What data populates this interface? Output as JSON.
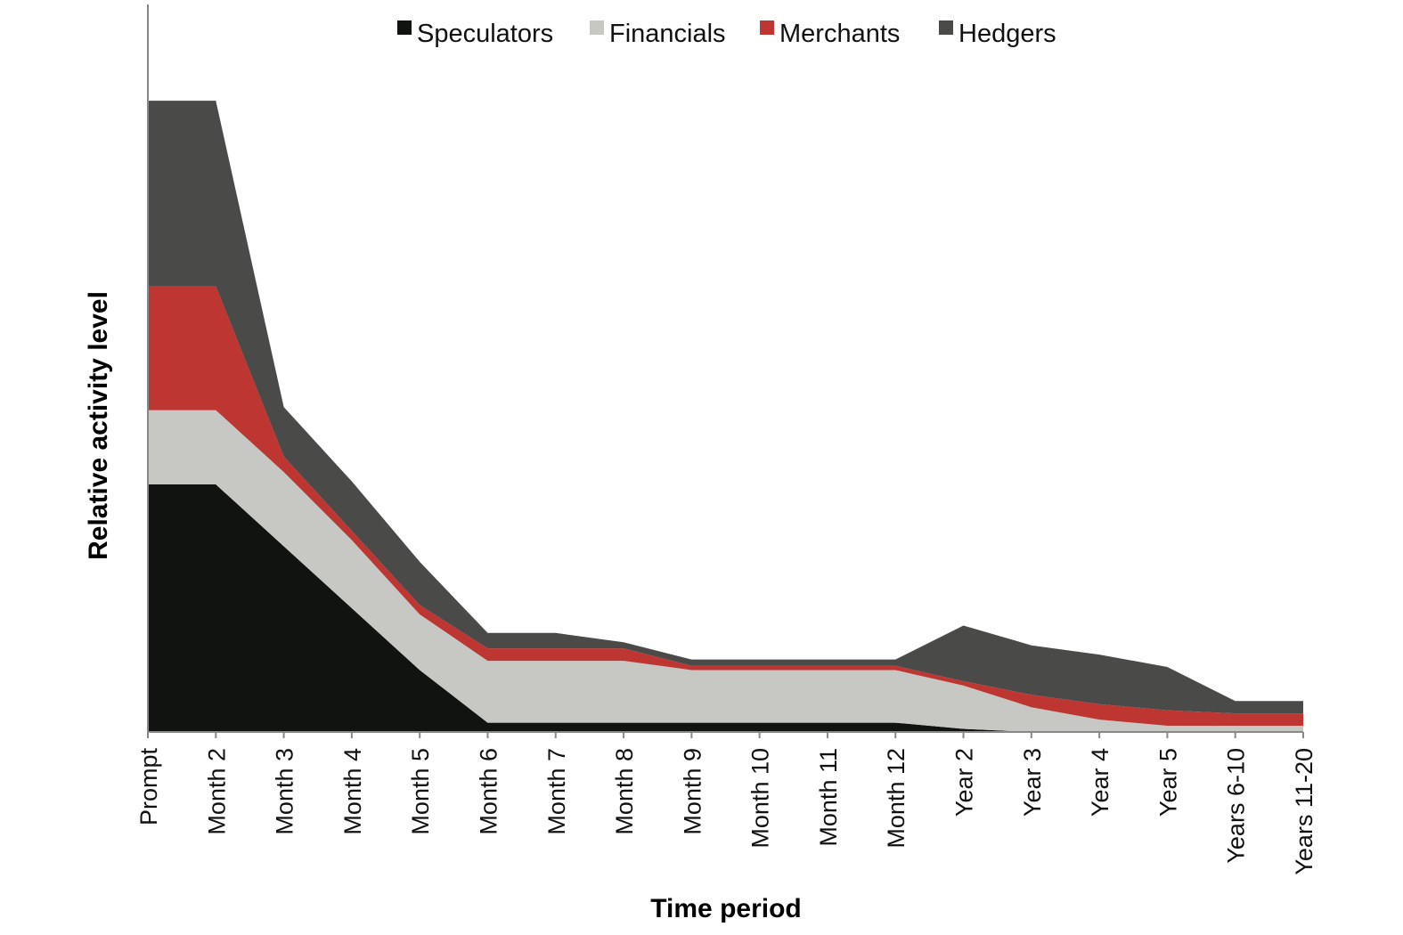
{
  "chart_data": {
    "type": "area",
    "stacked": true,
    "title": "",
    "xlabel": "Time period",
    "ylabel": "Relative activity level",
    "legend_position": "top",
    "grid": false,
    "ylim": [
      0,
      100
    ],
    "categories": [
      "Prompt",
      "Month 2",
      "Month 3",
      "Month 4",
      "Month 5",
      "Month 6",
      "Month 7",
      "Month 8",
      "Month 9",
      "Month 10",
      "Month 11",
      "Month 12",
      "Year 2",
      "Year 3",
      "Year 4",
      "Year 5",
      "Years 6-10",
      "Years 11-20"
    ],
    "series": [
      {
        "name": "Speculators",
        "color": "#111311",
        "values": [
          40,
          40,
          30,
          20,
          10,
          1.5,
          1.5,
          1.5,
          1.5,
          1.5,
          1.5,
          1.5,
          0.5,
          0,
          0,
          0,
          0,
          0
        ]
      },
      {
        "name": "Financials",
        "color": "#c7c7c4",
        "values": [
          12,
          12,
          12,
          11,
          9,
          10,
          10,
          10,
          8.5,
          8.5,
          8.5,
          8.5,
          7,
          4,
          2,
          1,
          1,
          1
        ]
      },
      {
        "name": "Merchants",
        "color": "#be3631",
        "values": [
          20,
          20,
          2.5,
          1.5,
          1.5,
          2,
          2,
          2,
          0.7,
          0.7,
          0.7,
          0.7,
          0.7,
          2,
          2.5,
          2.5,
          2,
          2
        ]
      },
      {
        "name": "Hedgers",
        "color": "#4a4a48",
        "values": [
          30,
          30,
          8,
          8,
          7,
          2.5,
          2.5,
          1,
          1,
          1,
          1,
          1,
          9,
          8,
          8,
          7,
          2,
          2
        ]
      }
    ]
  }
}
